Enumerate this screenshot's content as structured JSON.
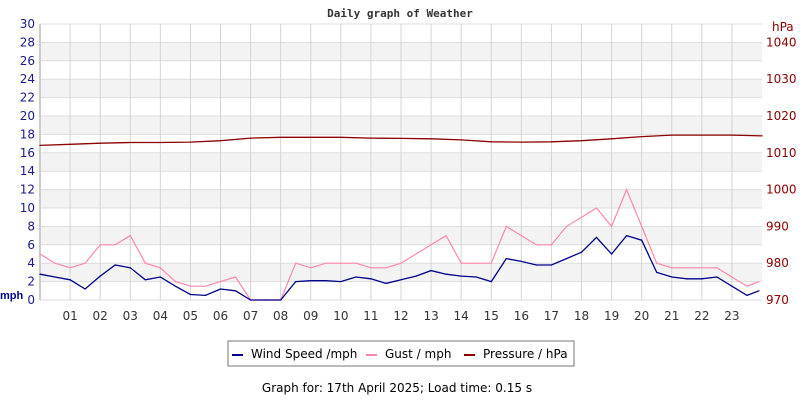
{
  "chart_data": {
    "type": "line",
    "title": "Daily graph of Weather",
    "ylabel_left": "mph",
    "ylabel_right": "hPa",
    "ylim_left": [
      0,
      30
    ],
    "ylim_right": [
      970,
      1045
    ],
    "xlim_hours": [
      0,
      24
    ],
    "grid": true,
    "x_tick_labels": [
      "01",
      "02",
      "03",
      "04",
      "05",
      "06",
      "07",
      "08",
      "09",
      "10",
      "11",
      "12",
      "13",
      "14",
      "15",
      "16",
      "17",
      "18",
      "19",
      "20",
      "21",
      "22",
      "23"
    ],
    "y_left_ticks": [
      0,
      2,
      4,
      6,
      8,
      10,
      12,
      14,
      16,
      18,
      20,
      22,
      24,
      26,
      28,
      30
    ],
    "y_right_ticks": [
      970,
      980,
      990,
      1000,
      1010,
      1020,
      1030,
      1040
    ],
    "legend_placement": "bottom",
    "series": [
      {
        "name": "Wind Speed /mph",
        "color": "#00008b",
        "axis": "left",
        "x": [
          0,
          0.5,
          1,
          1.5,
          2,
          2.5,
          3,
          3.5,
          4,
          4.5,
          5,
          5.5,
          6,
          6.5,
          7,
          7.5,
          8,
          8.5,
          9,
          9.5,
          10,
          10.5,
          11,
          11.5,
          12,
          12.5,
          13,
          13.5,
          14,
          14.5,
          15,
          15.5,
          16,
          16.5,
          17,
          17.5,
          18,
          18.5,
          19,
          19.5,
          20,
          20.5,
          21,
          21.5,
          22,
          22.5,
          23,
          23.5,
          23.9
        ],
        "values": [
          2.8,
          2.5,
          2.2,
          1.2,
          2.6,
          3.8,
          3.5,
          2.2,
          2.5,
          1.5,
          0.6,
          0.5,
          1.2,
          1.0,
          0,
          0,
          0,
          2.0,
          2.1,
          2.1,
          2.0,
          2.5,
          2.3,
          1.8,
          2.2,
          2.6,
          3.2,
          2.8,
          2.6,
          2.5,
          2.0,
          4.5,
          4.2,
          3.8,
          3.8,
          4.5,
          5.2,
          6.8,
          5.0,
          7.0,
          6.5,
          3.0,
          2.5,
          2.3,
          2.3,
          2.5,
          1.5,
          0.5,
          1.0
        ]
      },
      {
        "name": "Gust / mph",
        "color": "#ff88aa",
        "axis": "left",
        "x": [
          0,
          0.5,
          1,
          1.5,
          2,
          2.5,
          3,
          3.5,
          4,
          4.5,
          5,
          5.5,
          6,
          6.5,
          7,
          7.5,
          8,
          8.5,
          9,
          9.5,
          10,
          10.5,
          11,
          11.5,
          12,
          12.5,
          13,
          13.5,
          14,
          14.5,
          15,
          15.5,
          16,
          16.5,
          17,
          17.5,
          18,
          18.5,
          19,
          19.5,
          20,
          20.5,
          21,
          21.5,
          22,
          22.5,
          23,
          23.5,
          23.9
        ],
        "values": [
          5,
          4,
          3.5,
          4,
          6,
          6,
          7,
          4,
          3.5,
          2,
          1.5,
          1.5,
          2,
          2.5,
          0,
          0,
          0,
          4,
          3.5,
          4,
          4,
          4,
          3.5,
          3.5,
          4,
          5,
          6,
          7,
          4,
          4,
          4,
          8,
          7,
          6,
          6,
          8,
          9,
          10,
          8,
          12,
          8,
          4,
          3.5,
          3.5,
          3.5,
          3.5,
          2.5,
          1.5,
          2
        ]
      },
      {
        "name": "Pressure / hPa",
        "color": "#8b0000",
        "axis": "right",
        "x": [
          0,
          1,
          2,
          3,
          4,
          5,
          6,
          7,
          8,
          9,
          10,
          11,
          12,
          13,
          14,
          15,
          16,
          17,
          18,
          19,
          20,
          21,
          22,
          23,
          24
        ],
        "values": [
          1012.0,
          1012.3,
          1012.6,
          1012.8,
          1012.8,
          1012.9,
          1013.3,
          1014.0,
          1014.2,
          1014.2,
          1014.2,
          1014.0,
          1013.9,
          1013.8,
          1013.5,
          1013.0,
          1012.9,
          1013.0,
          1013.3,
          1013.8,
          1014.4,
          1014.8,
          1014.8,
          1014.8,
          1014.6
        ]
      }
    ]
  },
  "footer": "Graph for: 17th April 2025; Load time: 0.15 s"
}
